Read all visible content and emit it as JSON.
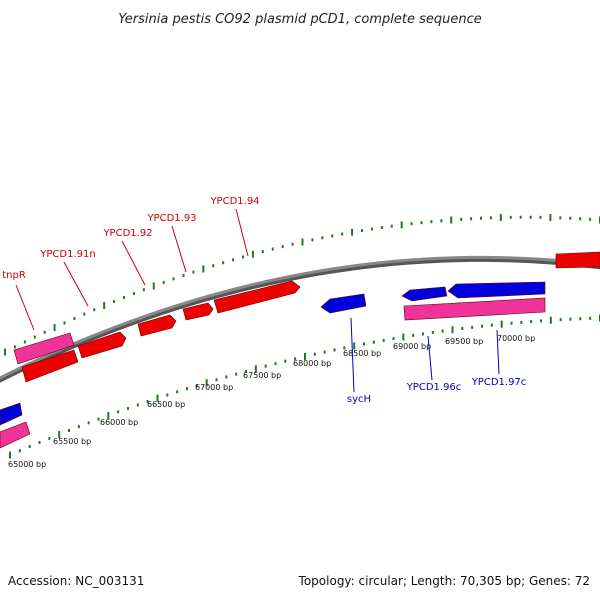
{
  "header": {
    "title": "Yersinia pestis CO92 plasmid pCD1, complete sequence"
  },
  "footer": {
    "accession": "Accession: NC_003131",
    "summary": "Topology: circular; Length: 70,305 bp; Genes: 72"
  },
  "colors": {
    "forward_gene": "#ee0000",
    "forward_label": "#cc0000",
    "reverse_gene": "#0000dd",
    "reverse_label": "#0000bb",
    "rna_gene": "#ee3399",
    "backbone": "#888888",
    "tick": "#227722"
  },
  "scale_labels": [
    "65000 bp",
    "65500 bp",
    "66000 bp",
    "66500 bp",
    "67000 bp",
    "67500 bp",
    "68000 bp",
    "68500 bp",
    "69000 bp",
    "69500 bp",
    "70000 bp"
  ],
  "gene_labels": [
    {
      "text": "tnpR",
      "strand": "forward"
    },
    {
      "text": "YPCD1.91n",
      "strand": "forward"
    },
    {
      "text": "YPCD1.92",
      "strand": "forward"
    },
    {
      "text": "YPCD1.93",
      "strand": "forward"
    },
    {
      "text": "YPCD1.94",
      "strand": "forward"
    },
    {
      "text": "sycH",
      "strand": "reverse"
    },
    {
      "text": "YPCD1.96c",
      "strand": "reverse"
    },
    {
      "text": "YPCD1.97c",
      "strand": "reverse"
    }
  ]
}
